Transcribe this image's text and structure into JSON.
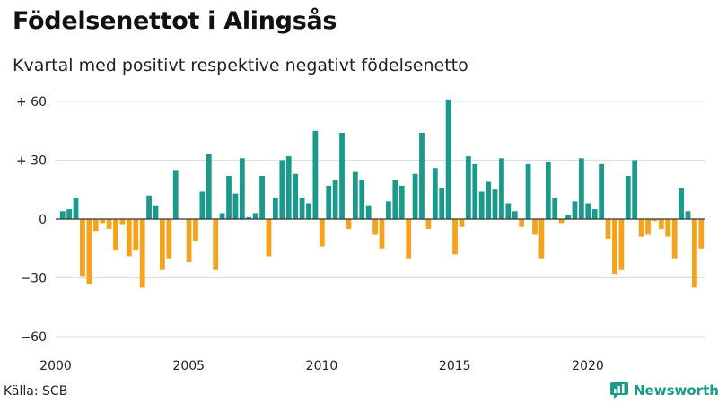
{
  "title": "Födelsenettot i Alingsås",
  "subtitle": "Kvartal med positivt respektive negativt födelsenetto",
  "source": "Källa: SCB",
  "brand": "Newsworthy",
  "colors": {
    "positive": "#1a9a8a",
    "negative": "#f5a21c",
    "grid": "#dddddd",
    "axis": "#333333"
  },
  "chart_data": {
    "type": "bar",
    "title": "Födelsenettot i Alingsås",
    "subtitle": "Kvartal med positivt respektive negativt födelsenetto",
    "x_start": "2000 Q1",
    "x_ticks": [
      "2000",
      "2005",
      "2010",
      "2015",
      "2020"
    ],
    "y_ticks": [
      "+ 60",
      "+ 30",
      "0",
      "−30",
      "−60"
    ],
    "ylim": [
      -60,
      60
    ],
    "grid": true,
    "values": [
      4,
      5,
      11,
      -29,
      -33,
      -6,
      -2,
      -5,
      -16,
      -3,
      -19,
      -16,
      -35,
      12,
      7,
      -26,
      -20,
      25,
      0,
      -22,
      -11,
      14,
      33,
      -26,
      3,
      22,
      13,
      31,
      1,
      3,
      22,
      -19,
      11,
      30,
      32,
      23,
      11,
      8,
      45,
      -14,
      17,
      20,
      44,
      -5,
      24,
      20,
      7,
      -8,
      -15,
      9,
      20,
      17,
      -20,
      23,
      44,
      -5,
      26,
      16,
      61,
      -18,
      -4,
      32,
      28,
      14,
      19,
      15,
      31,
      8,
      4,
      -4,
      28,
      -8,
      -20,
      29,
      11,
      -2,
      2,
      9,
      31,
      8,
      5,
      28,
      -10,
      -28,
      -26,
      22,
      30,
      -9,
      -8,
      -1,
      -5,
      -9,
      -20,
      16,
      4,
      -35,
      -15
    ]
  }
}
